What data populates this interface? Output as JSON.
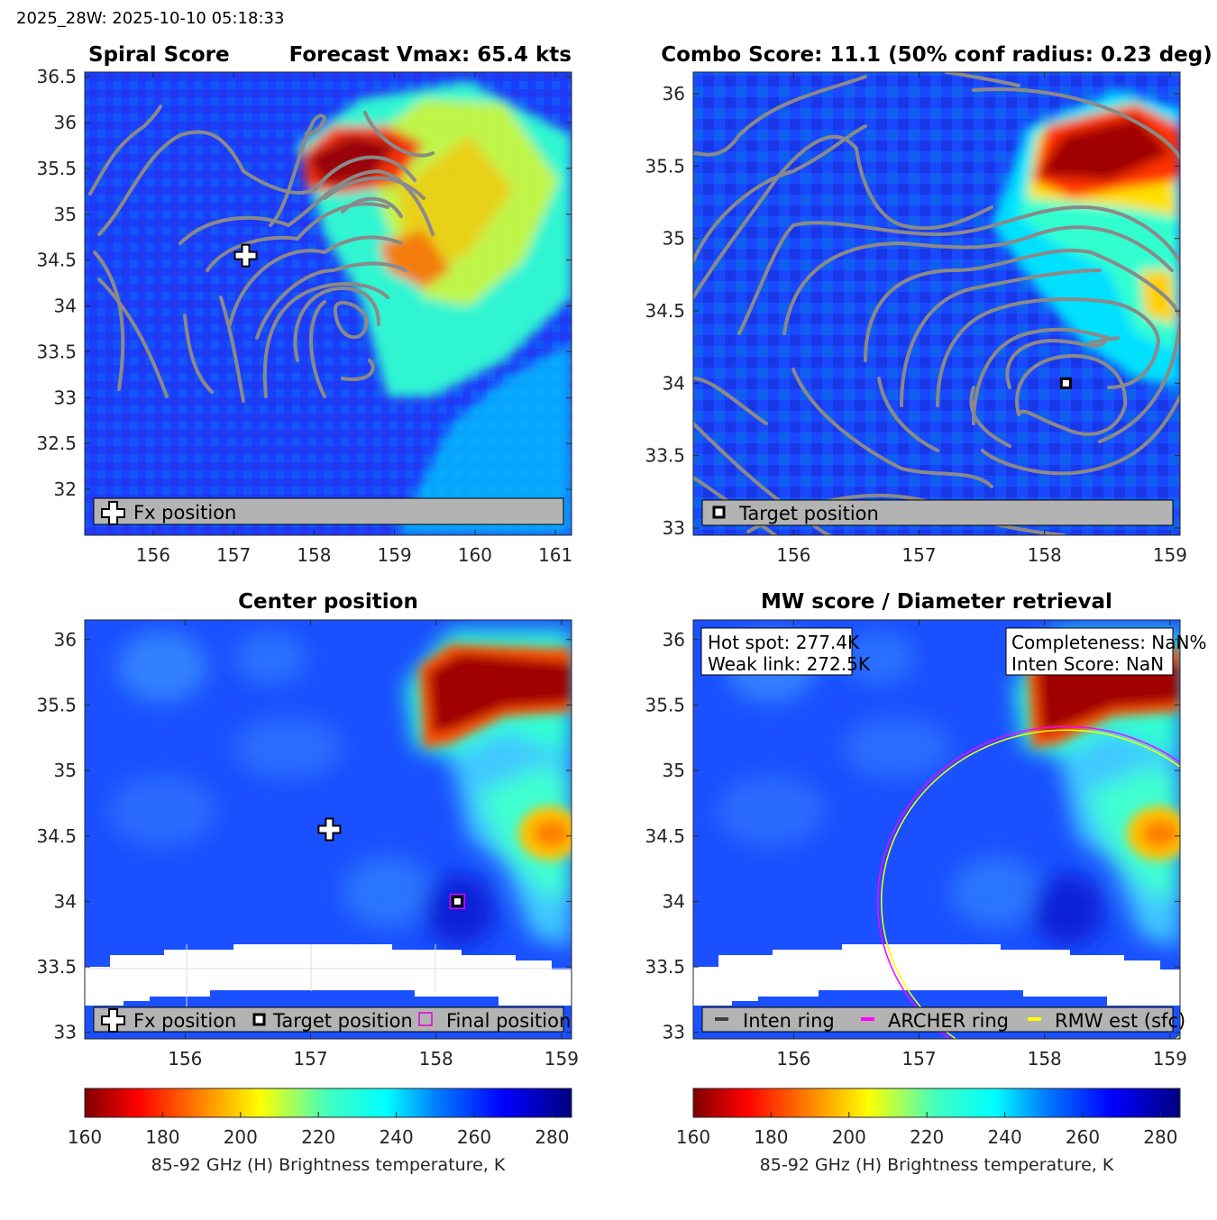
{
  "header": {
    "timestamp": "2025_28W: 2025-10-10 05:18:33"
  },
  "colors": {
    "contour": "#8a8a8a",
    "legend_bg": "#b3b3b3",
    "archer_ring": "#ff00ff",
    "rmw_ring": "#ffff00",
    "inten_ring": "#404040",
    "final_marker": "#e000e0"
  },
  "chart_data": [
    {
      "type": "heatmap",
      "panel": "spiral-score",
      "title_left": "Spiral Score",
      "title_right": "Forecast Vmax: 65.4 kts",
      "xlim": [
        155.15,
        161.2
      ],
      "ylim": [
        31.5,
        36.55
      ],
      "x_ticks": [
        "156",
        "157",
        "158",
        "159",
        "160",
        "161"
      ],
      "y_ticks": [
        "32",
        "32.5",
        "33",
        "33.5",
        "34",
        "34.5",
        "35",
        "35.5",
        "36",
        "36.5"
      ],
      "markers": [
        {
          "name": "Fx position",
          "symbol": "plus",
          "x": 157.15,
          "y": 34.55
        }
      ],
      "legend": [
        "Fx position"
      ],
      "contours": true
    },
    {
      "type": "heatmap",
      "panel": "combo-score",
      "title": "Combo Score: 11.1  (50% conf radius: 0.23 deg)",
      "xlim": [
        155.2,
        159.08
      ],
      "ylim": [
        32.95,
        36.15
      ],
      "x_ticks": [
        "156",
        "157",
        "158",
        "159"
      ],
      "y_ticks": [
        "33",
        "33.5",
        "34",
        "34.5",
        "35",
        "35.5",
        "36"
      ],
      "markers": [
        {
          "name": "Target position",
          "symbol": "square",
          "x": 158.17,
          "y": 34.0
        }
      ],
      "legend": [
        "Target position"
      ],
      "contours": true
    },
    {
      "type": "heatmap",
      "panel": "center-position",
      "title": "Center position",
      "xlim": [
        155.2,
        159.08
      ],
      "ylim": [
        32.95,
        36.15
      ],
      "x_ticks": [
        "156",
        "157",
        "158",
        "159"
      ],
      "y_ticks": [
        "33",
        "33.5",
        "34",
        "34.5",
        "35",
        "35.5",
        "36"
      ],
      "markers": [
        {
          "name": "Fx position",
          "symbol": "plus",
          "x": 157.15,
          "y": 34.55
        },
        {
          "name": "Target position",
          "symbol": "square",
          "x": 158.17,
          "y": 34.0
        },
        {
          "name": "Final position",
          "symbol": "open-square",
          "x": 158.17,
          "y": 34.0
        }
      ],
      "legend": [
        "Fx position",
        "Target position",
        "Final position"
      ]
    },
    {
      "type": "heatmap",
      "panel": "mw-score",
      "title": "MW score / Diameter retrieval",
      "xlim": [
        155.2,
        159.08
      ],
      "ylim": [
        32.95,
        36.15
      ],
      "x_ticks": [
        "156",
        "157",
        "158",
        "159"
      ],
      "y_ticks": [
        "33",
        "33.5",
        "34",
        "34.5",
        "35",
        "35.5",
        "36"
      ],
      "annotations": {
        "hot_spot": "Hot spot: 277.4K",
        "weak_link": "Weak link: 272.5K",
        "completeness": "Completeness: NaN%",
        "inten_score": "Inten Score: NaN"
      },
      "rings": [
        {
          "name": "ARCHER ring",
          "center_x": 158.17,
          "center_y": 34.0,
          "radius_deg": 1.5
        },
        {
          "name": "RMW est (sfc)",
          "center_x": 158.17,
          "center_y": 34.0,
          "radius_deg": 1.47
        }
      ],
      "legend": [
        "Inten ring",
        "ARCHER ring",
        "RMW est (sfc)"
      ]
    }
  ],
  "colorbar": {
    "min": 160,
    "max": 285,
    "ticks": [
      "160",
      "180",
      "200",
      "220",
      "240",
      "260",
      "280"
    ],
    "label": "85-92 GHz (H) Brightness temperature, K",
    "colormap": "jet-reversed"
  }
}
